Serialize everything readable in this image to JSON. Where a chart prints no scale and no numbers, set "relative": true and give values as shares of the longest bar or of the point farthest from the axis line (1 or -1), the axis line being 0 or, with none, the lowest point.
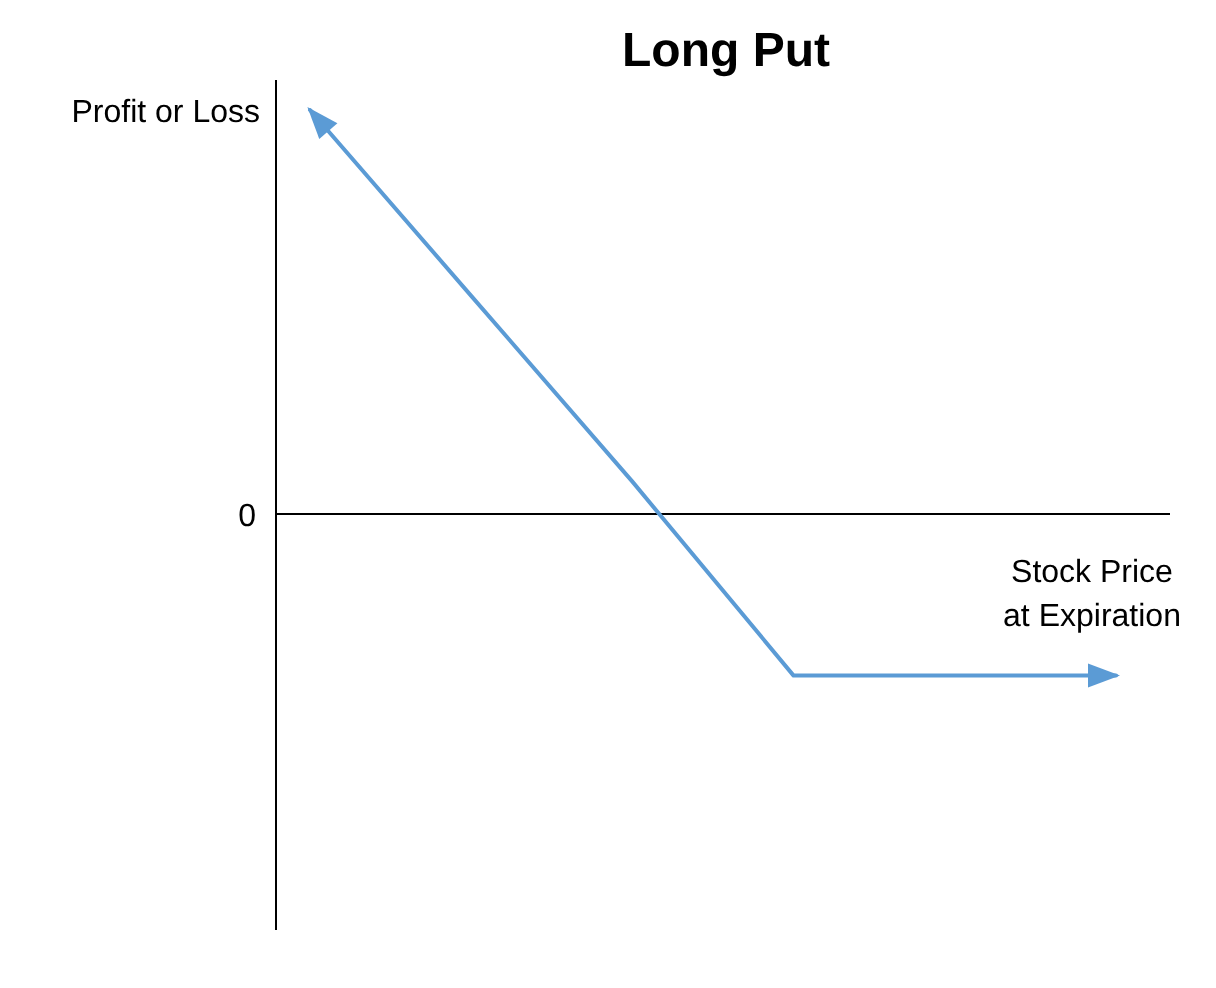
{
  "chart_data": {
    "type": "line",
    "title": "Long Put",
    "xlabel": "Stock Price\nat Expiration",
    "ylabel": "Profit or Loss",
    "relative": true,
    "categories": [
      null,
      null,
      null,
      null,
      null,
      null
    ],
    "series": [
      {
        "color": "#5b9bd5",
        "values": [
          1,
          0.54,
          0.08,
          -0.4,
          -0.4,
          -0.4
        ]
      }
    ],
    "annotations": [
      "0"
    ],
    "line_style": "solid"
  }
}
